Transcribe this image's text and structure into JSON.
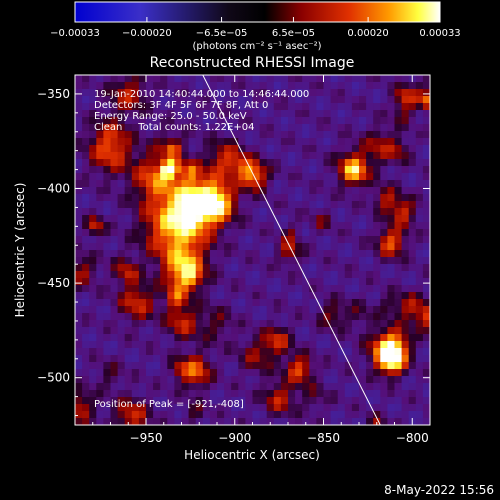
{
  "chart_data": {
    "type": "heatmap",
    "title": "Reconstructed RHESSI Image",
    "xlabel": "Heliocentric X (arcsec)",
    "ylabel": "Heliocentric Y (arcsec)",
    "xlim": [
      -990,
      -790
    ],
    "ylim": [
      -525,
      -340
    ],
    "x_ticks": [
      -950,
      -900,
      -850,
      -800
    ],
    "y_ticks": [
      -350,
      -400,
      -450,
      -500
    ],
    "x_tick_labels": [
      "−950",
      "−900",
      "−850",
      "−800"
    ],
    "y_tick_labels": [
      "−350",
      "−400",
      "−450",
      "−500"
    ],
    "colorbar": {
      "range": [
        -0.00033,
        0.00033
      ],
      "tick_values": [
        -0.00033,
        -0.0002,
        -6.5e-05,
        6.5e-05,
        0.0002,
        0.00033
      ],
      "tick_labels": [
        "−0.00033",
        "−0.00020",
        "−6.5e−05",
        "6.5e−05",
        "0.00020",
        "0.00033"
      ],
      "unit_label": "(photons cm⁻² s⁻¹ asec⁻²)",
      "colors": [
        "#0000d0",
        "#3b2fc8",
        "#000000",
        "#8a0000",
        "#e03000",
        "#ff9a00",
        "#ffff40",
        "#ffffff"
      ]
    },
    "annotations": [
      "19-Jan-2010 14:40:44.000 to 14:46:44.000",
      "Detectors: 3F 4F 5F 6F 7F 8F, Att 0",
      "Energy Range: 25.0 - 50.0 keV",
      "Clean     Total counts: 1.22E+04"
    ],
    "peak_label": "Position of Peak = [-921,-408]",
    "peak": [
      -921,
      -408
    ],
    "limb_line": [
      [
        -918,
        -340
      ],
      [
        -818,
        -525
      ]
    ],
    "grid": false
  },
  "footer": {
    "timestamp": "8-May-2022 15:56"
  }
}
